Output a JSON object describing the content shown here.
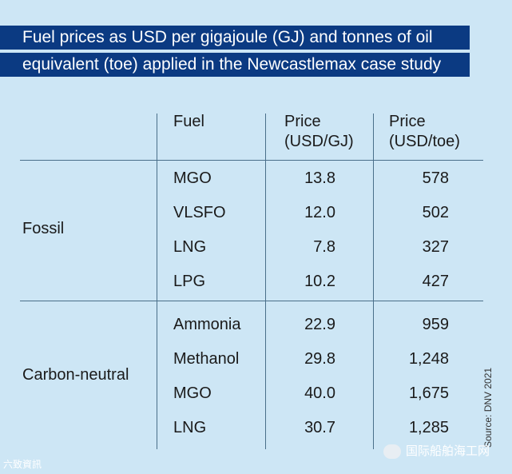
{
  "title": {
    "line1": "Fuel prices as USD per gigajoule (GJ) and tonnes of oil",
    "line2": "equivalent (toe) applied in the Newcastlemax case study"
  },
  "table": {
    "headers": {
      "fuel": "Fuel",
      "price_gj_1": "Price",
      "price_gj_2": "(USD/GJ)",
      "price_toe_1": "Price",
      "price_toe_2": "(USD/toe)"
    },
    "groups": [
      {
        "name": "Fossil",
        "rows": [
          {
            "fuel": "MGO",
            "gj": "13.8",
            "toe": "578"
          },
          {
            "fuel": "VLSFO",
            "gj": "12.0",
            "toe": "502"
          },
          {
            "fuel": "LNG",
            "gj": "7.8",
            "toe": "327"
          },
          {
            "fuel": "LPG",
            "gj": "10.2",
            "toe": "427"
          }
        ]
      },
      {
        "name": "Carbon-neutral",
        "rows": [
          {
            "fuel": "Ammonia",
            "gj": "22.9",
            "toe": "959"
          },
          {
            "fuel": "Methanol",
            "gj": "29.8",
            "toe": "1,248"
          },
          {
            "fuel": "MGO",
            "gj": "40.0",
            "toe": "1,675"
          },
          {
            "fuel": "LNG",
            "gj": "30.7",
            "toe": "1,285"
          }
        ]
      }
    ]
  },
  "source": "Source: DNV 2021",
  "watermark_left": "六致資訊",
  "watermark_right": "国际船舶海工网"
}
